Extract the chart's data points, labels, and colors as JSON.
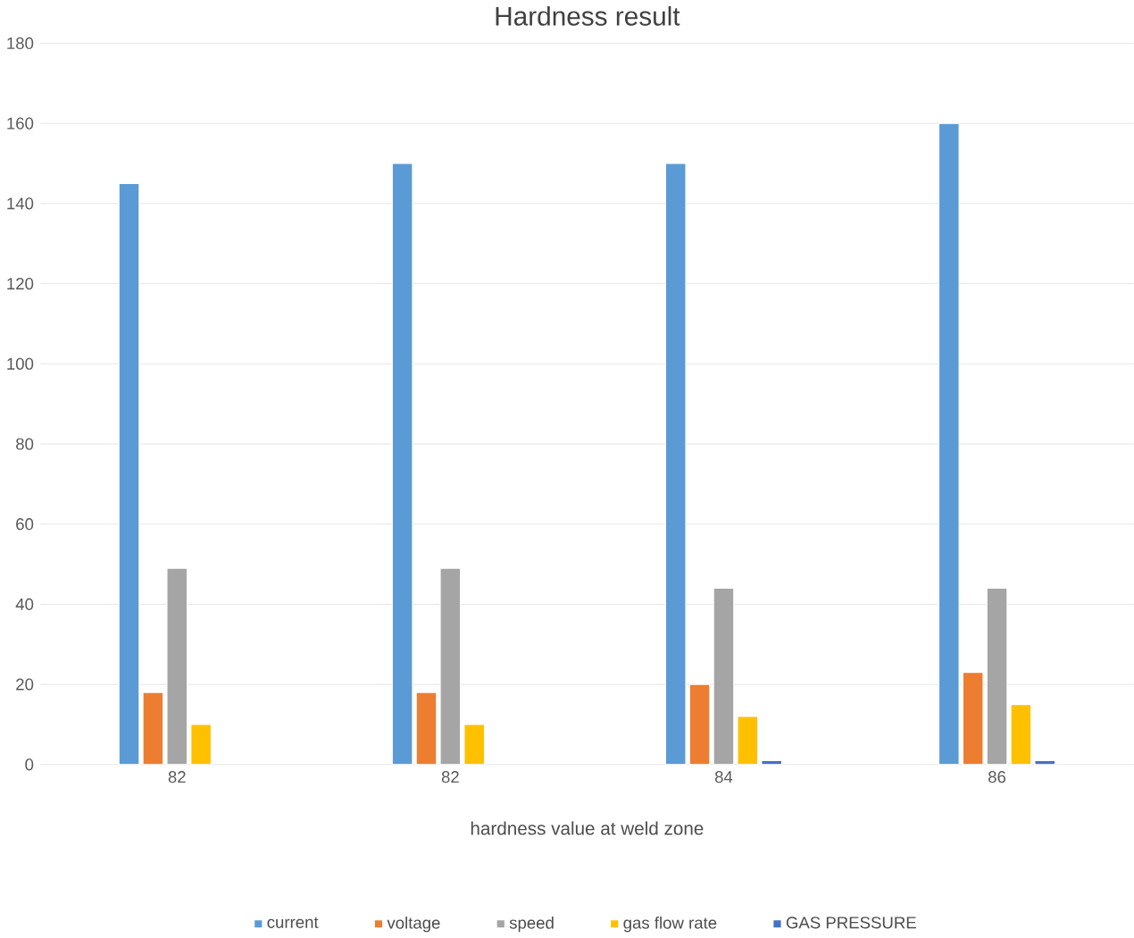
{
  "chart_data": {
    "type": "bar",
    "title": "Hardness result",
    "xlabel": "hardness value at weld zone",
    "categories": [
      "82",
      "82",
      "84",
      "86"
    ],
    "series": [
      {
        "name": "current",
        "color": "#5b9bd5",
        "values": [
          145,
          150,
          150,
          160
        ]
      },
      {
        "name": "voltage",
        "color": "#ed7d31",
        "values": [
          18,
          18,
          20,
          23
        ]
      },
      {
        "name": "speed",
        "color": "#a5a5a5",
        "values": [
          49,
          49,
          44,
          44
        ]
      },
      {
        "name": "gas flow rate",
        "color": "#ffc000",
        "values": [
          10,
          10,
          12,
          15
        ]
      },
      {
        "name": "GAS PRESSURE",
        "color": "#4472c4",
        "values": [
          null,
          null,
          1,
          1
        ]
      }
    ],
    "ylim": [
      0,
      180
    ],
    "yticks": [
      0,
      20,
      40,
      60,
      80,
      100,
      120,
      140,
      160,
      180
    ],
    "grid": "y",
    "legend": "bottom"
  }
}
